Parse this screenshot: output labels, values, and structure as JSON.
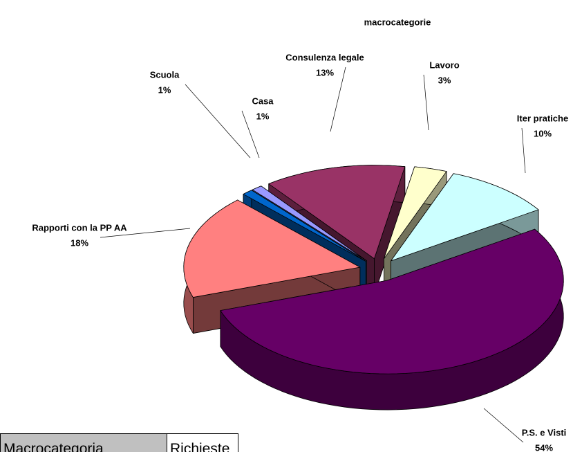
{
  "chart_data": {
    "type": "pie",
    "title": "macrocategorie",
    "categories": [
      "Lavoro",
      "Iter pratiche",
      "P.S. e Visti",
      "Rapporti con la PP AA",
      "Scuola",
      "Casa",
      "Consulenza legale"
    ],
    "values": [
      3,
      10,
      54,
      18,
      1,
      1,
      13
    ],
    "value_labels": [
      "3%",
      "10%",
      "54%",
      "18%",
      "1%",
      "1%",
      "13%"
    ],
    "colors": [
      "#FFFFCC",
      "#CCFFFF",
      "#660066",
      "#FF8080",
      "#0066CC",
      "#9999FF",
      "#993366"
    ]
  },
  "table": {
    "header": [
      "Macrocategoria",
      "Richieste"
    ]
  }
}
